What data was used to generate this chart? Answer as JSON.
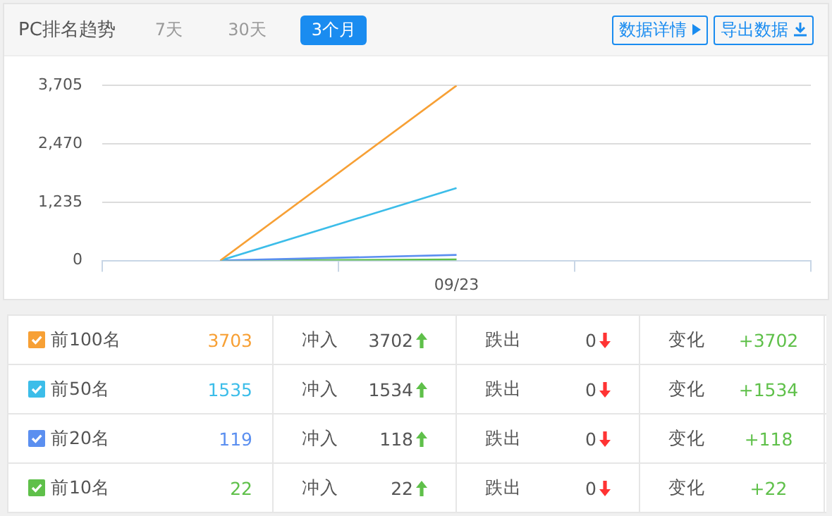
{
  "chart_data": {
    "type": "line",
    "title": "PC排名趋势",
    "categories": [
      null,
      "09/23",
      null
    ],
    "series": [
      {
        "name": "前100名",
        "color": "#f7a035",
        "values": [
          0,
          3703,
          null
        ]
      },
      {
        "name": "前50名",
        "color": "#3cbde9",
        "values": [
          0,
          1535,
          null
        ]
      },
      {
        "name": "前20名",
        "color": "#5b8ff0",
        "values": [
          0,
          119,
          null
        ]
      },
      {
        "name": "前10名",
        "color": "#5fc04a",
        "values": [
          0,
          22,
          null
        ]
      }
    ],
    "ylim": [
      0,
      3705
    ],
    "yticks": [
      0,
      {
        "value": 1235,
        "label": "1,235"
      },
      {
        "value": 2470,
        "label": "2,470"
      },
      {
        "value": 3705,
        "label": "3,705"
      }
    ],
    "grid": "y",
    "legend": "bottom",
    "marker": "none",
    "line_style": "solid",
    "annotations": [
      "7天",
      "30天",
      "3个月",
      "数据详情",
      "导出数据",
      "3703",
      "冲入",
      "3702",
      "跌出",
      "0",
      "变化",
      "+3702",
      "1535",
      "冲入",
      "1534",
      "跌出",
      "0",
      "变化",
      "+1534",
      "119",
      "冲入",
      "118",
      "跌出",
      "0",
      "变化",
      "+118",
      "22",
      "冲入",
      "22",
      "跌出",
      "0",
      "变化",
      "+22"
    ]
  }
}
